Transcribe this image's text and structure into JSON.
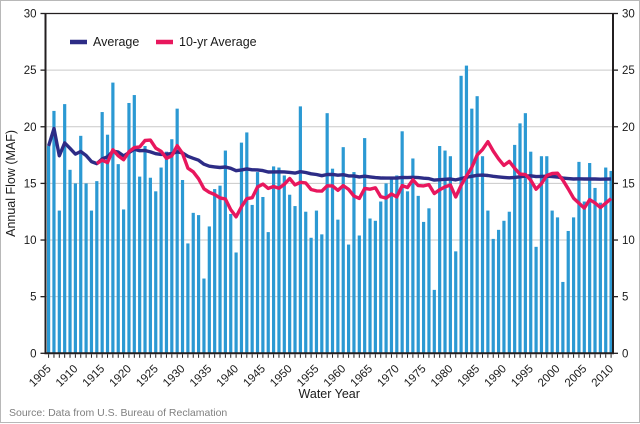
{
  "chart_data": {
    "type": "bar",
    "title": "",
    "x_axis": {
      "label": "Water Year",
      "start_year": 1905,
      "end_year": 2010,
      "tick_label_step": 5,
      "tick_labels": [
        "1905",
        "1910",
        "1915",
        "1920",
        "1925",
        "1930",
        "1935",
        "1940",
        "1945",
        "1950",
        "1955",
        "1960",
        "1965",
        "1970",
        "1975",
        "1980",
        "1985",
        "1990",
        "1995",
        "2000",
        "2005",
        "2010"
      ]
    },
    "y_axis": {
      "label": "Annual Flow (MAF)",
      "min": 0,
      "max": 30,
      "tick_step": 5,
      "tick_labels": [
        "0",
        "5",
        "10",
        "15",
        "20",
        "25",
        "30"
      ]
    },
    "series": [
      {
        "name": "Annual Flow",
        "type": "bar",
        "color": "#2b99d3",
        "values": [
          18.3,
          21.4,
          12.6,
          22.0,
          16.2,
          15.0,
          19.2,
          15.0,
          12.6,
          15.2,
          21.3,
          19.3,
          23.9,
          16.7,
          12.7,
          22.1,
          22.8,
          15.6,
          18.3,
          15.5,
          14.3,
          16.4,
          17.8,
          18.9,
          21.6,
          15.3,
          9.7,
          12.4,
          12.2,
          6.6,
          11.2,
          14.5,
          14.8,
          17.9,
          12.3,
          8.9,
          18.6,
          19.5,
          13.1,
          16.0,
          13.8,
          10.7,
          16.5,
          16.4,
          15.7,
          14.0,
          13.0,
          21.8,
          12.5,
          10.2,
          12.6,
          10.5,
          21.2,
          16.3,
          11.8,
          18.2,
          9.6,
          16.0,
          10.4,
          19.0,
          11.9,
          11.7,
          13.4,
          15.0,
          15.4,
          15.7,
          19.6,
          14.3,
          17.2,
          13.9,
          11.6,
          12.8,
          5.6,
          18.3,
          17.9,
          17.4,
          9.0,
          24.5,
          25.4,
          21.6,
          22.7,
          17.4,
          12.6,
          10.1,
          10.9,
          11.7,
          12.5,
          18.4,
          20.3,
          21.2,
          17.8,
          9.4,
          17.4,
          17.4,
          12.6,
          12.0,
          6.3,
          10.8,
          12.0,
          16.9,
          13.4,
          16.8,
          14.6,
          13.3,
          16.4,
          16.1
        ]
      },
      {
        "name": "Average",
        "type": "line",
        "color": "#2d2c86",
        "derived": "cumulative_mean"
      },
      {
        "name": "10-yr Average",
        "type": "line",
        "color": "#e8175d",
        "derived": "trailing_mean_10",
        "window": 10
      }
    ],
    "legend": [
      {
        "label": "Average",
        "color": "#2d2c86"
      },
      {
        "label": "10-yr Average",
        "color": "#e8175d"
      }
    ],
    "grid": "horizontal",
    "source_note": "Source: Data from U.S. Bureau of Reclamation"
  }
}
